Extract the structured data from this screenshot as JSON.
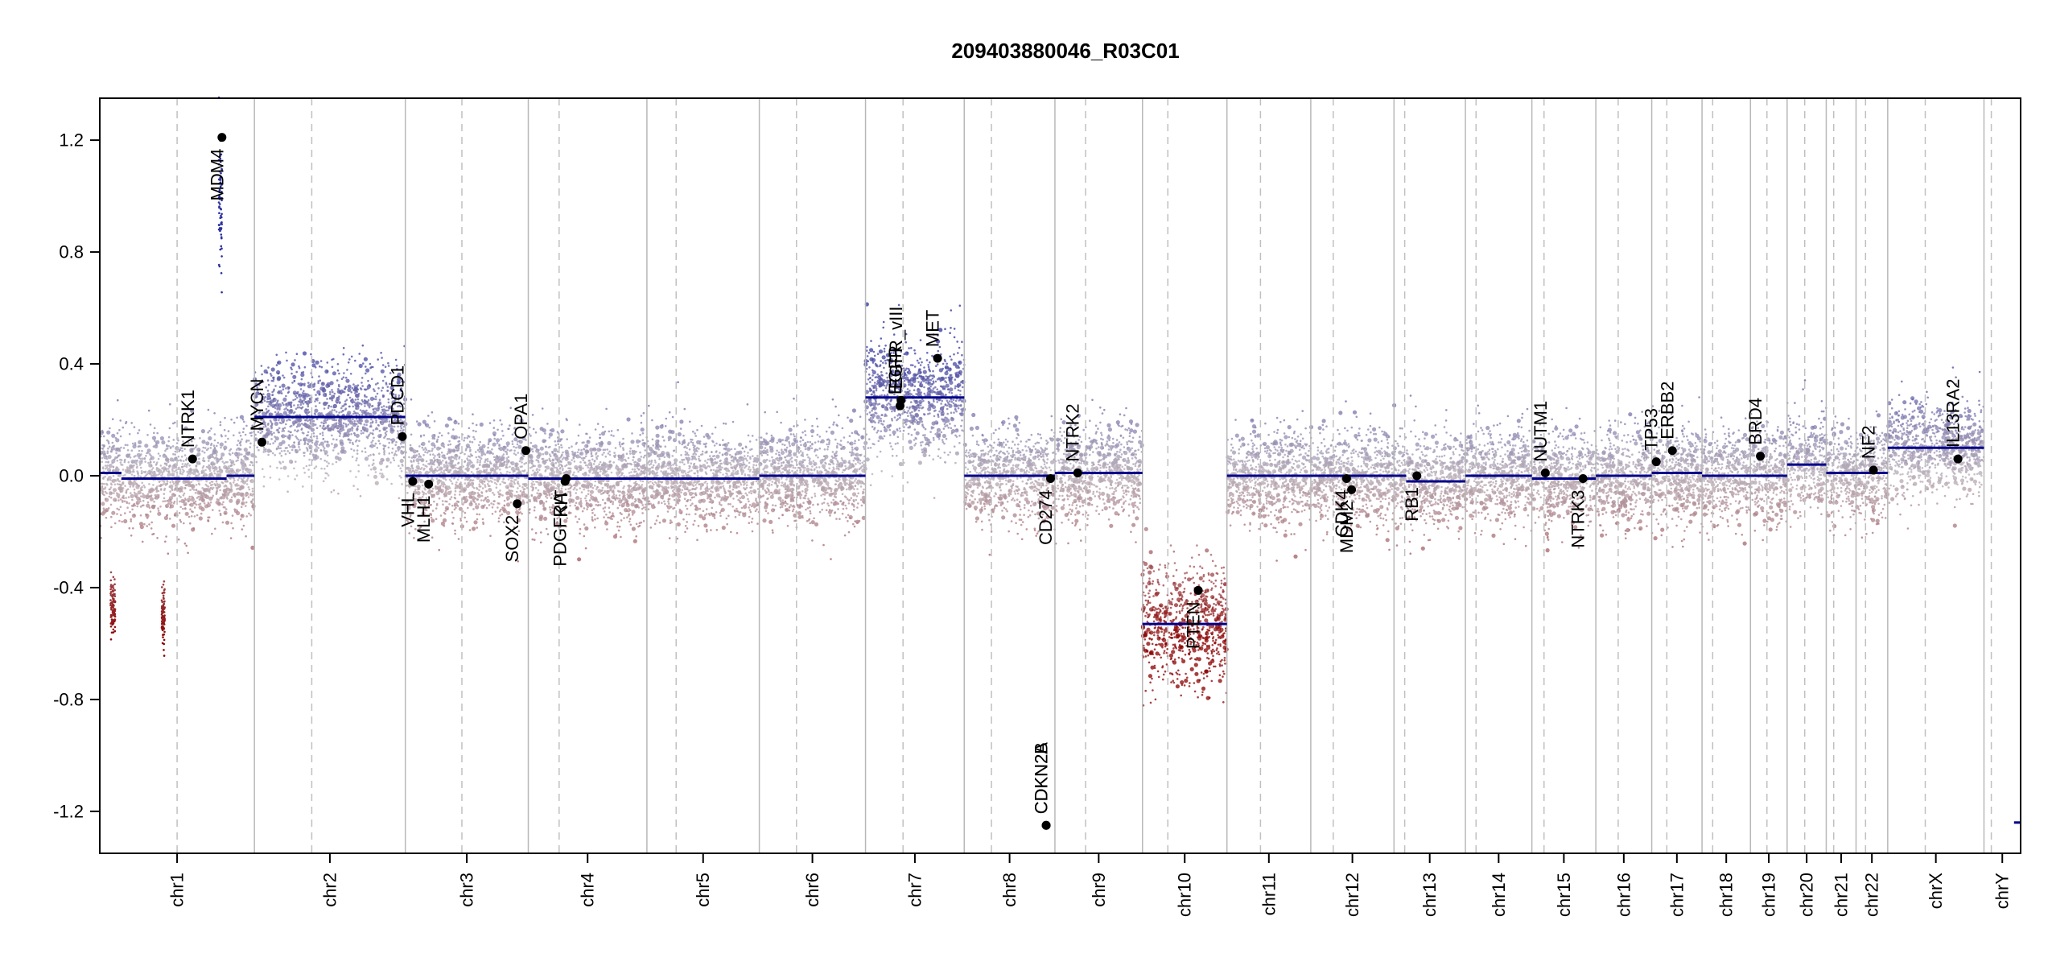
{
  "chart_data": {
    "type": "scatter",
    "title": "209403880046_R03C01",
    "xlabel": "",
    "ylabel": "",
    "ylim": [
      -1.35,
      1.35
    ],
    "y_ticks": [
      1.2,
      0.8,
      0.4,
      0.0,
      -0.4,
      -0.8,
      -1.2
    ],
    "y_tick_labels": [
      "1.2",
      "0.8",
      "0.4",
      "0.0",
      "-0.4",
      "-0.8",
      "-1.2"
    ],
    "colors": {
      "gain": "#2b2f9e",
      "loss": "#8b0000",
      "neutral": "#b9aeb8",
      "segment": "#00008b",
      "gene_point": "#000000"
    },
    "chromosomes": [
      {
        "name": "chr1",
        "len": 249,
        "centromere": 0.5,
        "segments": [
          {
            "from": 0.0,
            "to": 0.14,
            "value": 0.01
          },
          {
            "from": 0.14,
            "to": 0.44,
            "value": -0.01
          },
          {
            "from": 0.44,
            "to": 0.82,
            "value": -0.01
          },
          {
            "from": 0.82,
            "to": 1.0,
            "value": 0.0
          }
        ]
      },
      {
        "name": "chr2",
        "len": 243,
        "centromere": 0.38,
        "segments": [
          {
            "from": 0.0,
            "to": 1.0,
            "value": 0.21
          }
        ]
      },
      {
        "name": "chr3",
        "len": 198,
        "centromere": 0.46,
        "segments": [
          {
            "from": 0.0,
            "to": 1.0,
            "value": 0.0
          }
        ]
      },
      {
        "name": "chr4",
        "len": 191,
        "centromere": 0.26,
        "segments": [
          {
            "from": 0.0,
            "to": 1.0,
            "value": -0.01
          }
        ]
      },
      {
        "name": "chr5",
        "len": 181,
        "centromere": 0.26,
        "segments": [
          {
            "from": 0.0,
            "to": 1.0,
            "value": -0.01
          }
        ]
      },
      {
        "name": "chr6",
        "len": 171,
        "centromere": 0.35,
        "segments": [
          {
            "from": 0.0,
            "to": 1.0,
            "value": 0.0
          }
        ]
      },
      {
        "name": "chr7",
        "len": 159,
        "centromere": 0.38,
        "segments": [
          {
            "from": 0.0,
            "to": 1.0,
            "value": 0.28
          }
        ]
      },
      {
        "name": "chr8",
        "len": 146,
        "centromere": 0.3,
        "segments": [
          {
            "from": 0.0,
            "to": 1.0,
            "value": 0.0
          }
        ]
      },
      {
        "name": "chr9",
        "len": 141,
        "centromere": 0.35,
        "segments": [
          {
            "from": 0.0,
            "to": 1.0,
            "value": 0.01
          }
        ]
      },
      {
        "name": "chr10",
        "len": 136,
        "centromere": 0.3,
        "segments": [
          {
            "from": 0.0,
            "to": 1.0,
            "value": -0.53
          }
        ]
      },
      {
        "name": "chr11",
        "len": 135,
        "centromere": 0.4,
        "segments": [
          {
            "from": 0.0,
            "to": 1.0,
            "value": 0.0
          }
        ]
      },
      {
        "name": "chr12",
        "len": 134,
        "centromere": 0.27,
        "segments": [
          {
            "from": 0.0,
            "to": 1.0,
            "value": 0.0
          }
        ]
      },
      {
        "name": "chr13",
        "len": 115,
        "centromere": 0.15,
        "segments": [
          {
            "from": 0.0,
            "to": 0.17,
            "value": 0.0
          },
          {
            "from": 0.17,
            "to": 1.0,
            "value": -0.02
          }
        ]
      },
      {
        "name": "chr14",
        "len": 107,
        "centromere": 0.16,
        "segments": [
          {
            "from": 0.0,
            "to": 1.0,
            "value": 0.0
          }
        ]
      },
      {
        "name": "chr15",
        "len": 103,
        "centromere": 0.19,
        "segments": [
          {
            "from": 0.0,
            "to": 1.0,
            "value": -0.01
          }
        ]
      },
      {
        "name": "chr16",
        "len": 90,
        "centromere": 0.4,
        "segments": [
          {
            "from": 0.0,
            "to": 1.0,
            "value": 0.0
          }
        ]
      },
      {
        "name": "chr17",
        "len": 81,
        "centromere": 0.3,
        "segments": [
          {
            "from": 0.0,
            "to": 1.0,
            "value": 0.01
          }
        ]
      },
      {
        "name": "chr18",
        "len": 78,
        "centromere": 0.22,
        "segments": [
          {
            "from": 0.0,
            "to": 1.0,
            "value": 0.0
          }
        ]
      },
      {
        "name": "chr19",
        "len": 59,
        "centromere": 0.45,
        "segments": [
          {
            "from": 0.0,
            "to": 1.0,
            "value": 0.0
          }
        ]
      },
      {
        "name": "chr20",
        "len": 63,
        "centromere": 0.45,
        "segments": [
          {
            "from": 0.0,
            "to": 1.0,
            "value": 0.04
          }
        ]
      },
      {
        "name": "chr21",
        "len": 48,
        "centromere": 0.25,
        "segments": [
          {
            "from": 0.0,
            "to": 1.0,
            "value": 0.01
          }
        ]
      },
      {
        "name": "chr22",
        "len": 51,
        "centromere": 0.3,
        "segments": [
          {
            "from": 0.0,
            "to": 1.0,
            "value": 0.01
          }
        ]
      },
      {
        "name": "chrX",
        "len": 155,
        "centromere": 0.39,
        "segments": [
          {
            "from": 0.0,
            "to": 1.0,
            "value": 0.1
          }
        ]
      },
      {
        "name": "chrY",
        "len": 59,
        "centromere": 0.2,
        "segments": [
          {
            "from": 0.82,
            "to": 0.98,
            "value": -1.24
          }
        ]
      }
    ],
    "focal_clusters": [
      {
        "chrom": "chr1",
        "from": 0.07,
        "to": 0.1,
        "mean": -0.47,
        "spread": 0.11,
        "n": 90
      },
      {
        "chrom": "chr1",
        "from": 0.4,
        "to": 0.42,
        "mean": -0.5,
        "spread": 0.11,
        "n": 80
      },
      {
        "chrom": "chr1",
        "from": 0.77,
        "to": 0.79,
        "mean": 0.95,
        "spread": 0.26,
        "n": 70
      }
    ],
    "genes": [
      {
        "name": "NTRK1",
        "chrom": "chr1",
        "pos": 0.6,
        "value": 0.06,
        "label_side": "above"
      },
      {
        "name": "MDM4",
        "chrom": "chr1",
        "pos": 0.79,
        "value": 1.21,
        "label_side": "below"
      },
      {
        "name": "MYCN",
        "chrom": "chr2",
        "pos": 0.05,
        "value": 0.12,
        "label_side": "above"
      },
      {
        "name": "PDGFRA",
        "chrom": "chr4",
        "pos": 0.31,
        "value": -0.02,
        "label_side": "below"
      },
      {
        "name": "KIT",
        "chrom": "chr4",
        "pos": 0.32,
        "value": -0.01,
        "label_side": "below"
      },
      {
        "name": "PDCD1",
        "chrom": "chr2",
        "pos": 0.98,
        "value": 0.14,
        "label_side": "above"
      },
      {
        "name": "VHL",
        "chrom": "chr3",
        "pos": 0.06,
        "value": -0.02,
        "label_side": "below"
      },
      {
        "name": "MLH1",
        "chrom": "chr3",
        "pos": 0.19,
        "value": -0.03,
        "label_side": "below"
      },
      {
        "name": "SOX2",
        "chrom": "chr3",
        "pos": 0.91,
        "value": -0.1,
        "label_side": "below"
      },
      {
        "name": "OPA1",
        "chrom": "chr3",
        "pos": 0.98,
        "value": 0.09,
        "label_side": "above"
      },
      {
        "name": "EGFR",
        "chrom": "chr7",
        "pos": 0.35,
        "value": 0.25,
        "label_side": "above"
      },
      {
        "name": "EGFR_vIII",
        "chrom": "chr7",
        "pos": 0.36,
        "value": 0.27,
        "label_side": "above"
      },
      {
        "name": "MET",
        "chrom": "chr7",
        "pos": 0.73,
        "value": 0.42,
        "label_side": "above"
      },
      {
        "name": "CD274",
        "chrom": "chr9",
        "pos": -0.05,
        "value": -0.01,
        "label_side": "below"
      },
      {
        "name": "CDKN2A",
        "chrom": "chr9",
        "pos": -0.1,
        "value": -1.25,
        "label_side": "above"
      },
      {
        "name": "CDKN2B",
        "chrom": "chr9",
        "pos": -0.1,
        "value": -1.25,
        "label_side": "above"
      },
      {
        "name": "NTRK2",
        "chrom": "chr9",
        "pos": 0.26,
        "value": 0.01,
        "label_side": "above"
      },
      {
        "name": "PTEN",
        "chrom": "chr10",
        "pos": 0.66,
        "value": -0.41,
        "label_side": "below"
      },
      {
        "name": "CDK4",
        "chrom": "chr12",
        "pos": 0.43,
        "value": -0.01,
        "label_side": "below"
      },
      {
        "name": "MDM2",
        "chrom": "chr12",
        "pos": 0.49,
        "value": -0.05,
        "label_side": "below"
      },
      {
        "name": "RB1",
        "chrom": "chr13",
        "pos": 0.32,
        "value": 0.0,
        "label_side": "below"
      },
      {
        "name": "NUTM1",
        "chrom": "chr15",
        "pos": 0.21,
        "value": 0.01,
        "label_side": "above"
      },
      {
        "name": "NTRK3",
        "chrom": "chr15",
        "pos": 0.8,
        "value": -0.01,
        "label_side": "below"
      },
      {
        "name": "TP53",
        "chrom": "chr17",
        "pos": 0.09,
        "value": 0.05,
        "label_side": "above"
      },
      {
        "name": "ERBB2",
        "chrom": "chr17",
        "pos": 0.41,
        "value": 0.09,
        "label_side": "above"
      },
      {
        "name": "BRD4",
        "chrom": "chr19",
        "pos": 0.27,
        "value": 0.07,
        "label_side": "above"
      },
      {
        "name": "NF2",
        "chrom": "chr22",
        "pos": 0.55,
        "value": 0.02,
        "label_side": "above"
      },
      {
        "name": "IL13RA2",
        "chrom": "chrX",
        "pos": 0.73,
        "value": 0.06,
        "label_side": "above"
      }
    ]
  }
}
